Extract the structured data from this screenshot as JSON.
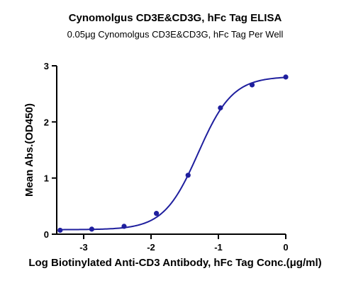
{
  "chart_data": {
    "type": "scatter",
    "title": "Cynomolgus CD3E&CD3G, hFc Tag ELISA",
    "subtitle": "0.05μg Cynomolgus CD3E&CD3G, hFc Tag Per Well",
    "xlabel": "Log Biotinylated Anti-CD3 Antibody, hFc Tag Conc.(μg/ml)",
    "ylabel": "Mean Abs.(OD450)",
    "xlim": [
      -3.4,
      0
    ],
    "ylim": [
      0,
      3
    ],
    "xticks": [
      -3,
      -2,
      -1,
      0
    ],
    "xtick_labels": [
      "-3",
      "-2",
      "-1",
      "0"
    ],
    "yticks": [
      0,
      1,
      2,
      3
    ],
    "ytick_labels": [
      "0",
      "1",
      "2",
      "3"
    ],
    "grid": false,
    "legend": "none",
    "color": "#1f1f9e",
    "series": [
      {
        "x": [
          -3.35,
          -2.88,
          -2.4,
          -1.92,
          -1.45,
          -0.97,
          -0.5,
          0.0
        ],
        "y": [
          0.07,
          0.09,
          0.14,
          0.37,
          1.05,
          2.25,
          2.66,
          2.8
        ]
      }
    ],
    "fit_curve": {
      "model": "4PL",
      "bottom": 0.08,
      "top": 2.81,
      "logEC50": -1.3,
      "hillslope": 1.7,
      "x_range": [
        -3.35,
        0.0
      ]
    }
  }
}
